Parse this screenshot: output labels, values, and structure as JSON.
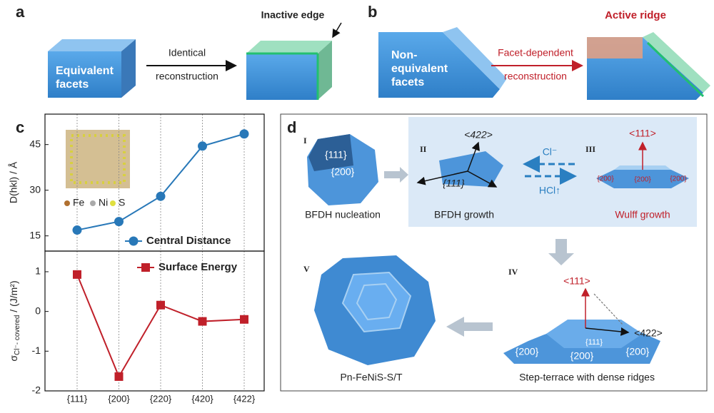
{
  "panel_a": {
    "label": "a",
    "box_text": [
      "Equivalent",
      "facets"
    ],
    "arrow_text": [
      "Identical",
      "reconstruction"
    ],
    "callout": "Inactive edge"
  },
  "panel_b": {
    "label": "b",
    "box_text": [
      "Non-",
      "equivalent",
      "facets"
    ],
    "arrow_text": [
      "Facet-dependent",
      "reconstruction"
    ],
    "callout": "Active ridge"
  },
  "panel_c": {
    "label": "c",
    "elements": [
      "Fe",
      "Ni",
      "S"
    ]
  },
  "chart_data": [
    {
      "type": "line",
      "marker": "circle",
      "ylabel": "D(hkl) / Å",
      "ylim": [
        10,
        55
      ],
      "yticks": [
        15,
        30,
        45
      ],
      "series": [
        {
          "name": "Central Distance",
          "color": "#2878b8",
          "values": [
            16.9,
            19.7,
            28,
            44.5,
            48.5
          ]
        }
      ]
    },
    {
      "type": "line",
      "marker": "square",
      "ylabel": {
        "symbol": "σ",
        "subscript": "Cl⁻- covered",
        "unit": " / (J/m²)"
      },
      "ylim": [
        -2,
        1.52
      ],
      "yticks": [
        -2,
        -1,
        0,
        1
      ],
      "categories": [
        "{111}",
        "{200}",
        "{220}",
        "{420}",
        "{422}"
      ],
      "series": [
        {
          "name": "Surface Energy",
          "color": "#c0202a",
          "values": [
            0.93,
            -1.64,
            0.16,
            -0.25,
            -0.2
          ]
        }
      ]
    }
  ],
  "panel_d": {
    "label": "d",
    "forward": "Cl⁻",
    "backward": "HCl↑",
    "stages": [
      {
        "numeral": "I",
        "facets": [
          "{111}",
          "{200}"
        ],
        "caption": "BFDH nucleation"
      },
      {
        "numeral": "II",
        "direction": "<422>",
        "facets": [
          "{111}"
        ],
        "caption": "BFDH growth"
      },
      {
        "numeral": "III",
        "direction": "<111>",
        "facets": [
          "{200}",
          "{200}",
          "{200}"
        ],
        "caption": "Wulff growth"
      },
      {
        "numeral": "IV",
        "directions": [
          "<111>",
          "<422>"
        ],
        "facets": [
          "{111}",
          "{200}",
          "{200}",
          "{200}"
        ],
        "caption": "Step-terrace with dense ridges"
      },
      {
        "numeral": "V",
        "caption": "Pn-FeNiS-S/T"
      }
    ]
  }
}
